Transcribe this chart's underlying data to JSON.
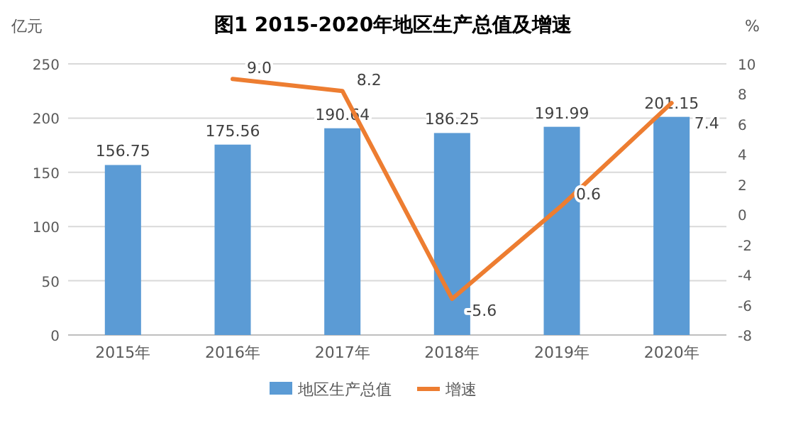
{
  "chart_data": {
    "type": "bar",
    "title": "图1 2015-2020年地区生产总值及增速",
    "ylabel": "亿元",
    "y2label": "%",
    "categories": [
      "2015年",
      "2016年",
      "2017年",
      "2018年",
      "2019年",
      "2020年"
    ],
    "series": [
      {
        "name": "地区生产总值",
        "color": "#5b9bd5",
        "values": [
          156.75,
          175.56,
          190.64,
          186.25,
          191.99,
          201.15
        ],
        "value_labels": [
          "156.75",
          "175.56",
          "190.64",
          "186.25",
          "191.99",
          "201.15"
        ]
      },
      {
        "name": "增速",
        "type": "line",
        "axis": "y2",
        "color": "#ed7d31",
        "values": [
          null,
          9.0,
          8.2,
          -5.6,
          0.6,
          7.4
        ],
        "value_labels": [
          null,
          "9.0",
          "8.2",
          "-5.6",
          "0.6",
          "7.4"
        ]
      }
    ],
    "ylim": [
      0,
      250
    ],
    "yticks": [
      0,
      50,
      100,
      150,
      200,
      250
    ],
    "y2lim": [
      -8,
      10
    ],
    "y2ticks": [
      -8,
      -6,
      -4,
      -2,
      0,
      2,
      4,
      6,
      8,
      10
    ],
    "grid": "y",
    "legend": "bottom"
  }
}
